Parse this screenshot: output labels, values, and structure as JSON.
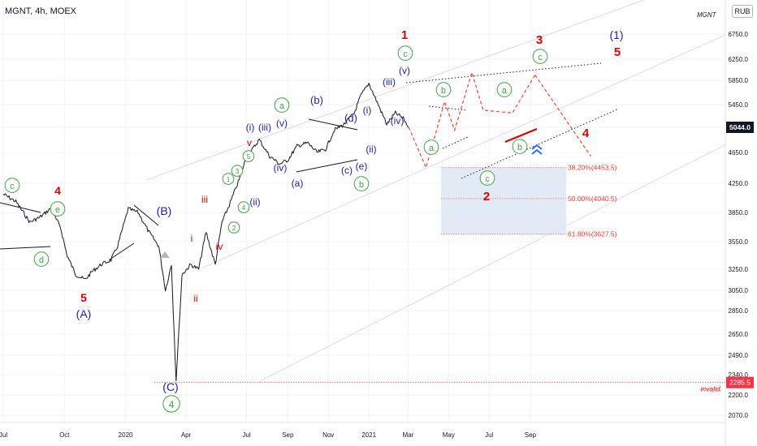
{
  "header": {
    "title": "MGNT, 4h, MOEX",
    "watermark": "MGNT",
    "currency": "RUB"
  },
  "colors": {
    "price": "#131722",
    "red": "#d50000",
    "blue": "#1e22aa",
    "green": "#43a047",
    "fib_fill": "#dbe5f4",
    "fib_line": "#e57373",
    "grid": "#f0f3fa",
    "channel": "#d1d4dc"
  },
  "chart_data": {
    "type": "line",
    "symbol": "MGNT",
    "interval": "4h",
    "exchange": "MOEX",
    "ylim": [
      1950,
      7000
    ],
    "y_ticks": [
      "6750.0",
      "6250.0",
      "5850.0",
      "5450.0",
      "5044.0",
      "4650.0",
      "4250.0",
      "3850.0",
      "3550.0",
      "3250.0",
      "3050.0",
      "2850.0",
      "2650.0",
      "2490.0",
      "2340.0",
      "2200.0",
      "2070.0"
    ],
    "x_ticks": [
      "Jul",
      "Oct",
      "2020",
      "Apr",
      "Jul",
      "Sep",
      "Nov",
      "2021",
      "Mar",
      "May",
      "Jul",
      "Sep"
    ],
    "x_tick_dates": [
      "2019-07-01",
      "2019-10-01",
      "2020-01-01",
      "2020-04-01",
      "2020-07-01",
      "2020-09-01",
      "2020-11-01",
      "2021-01-01",
      "2021-03-01",
      "2021-05-01",
      "2021-07-01",
      "2021-09-01"
    ],
    "last_price": "5044.0",
    "invalidation": {
      "value": "2285.5",
      "label": "invalid."
    },
    "fib_levels": [
      {
        "label": "38.20%(4453.5)",
        "value": 4453.5
      },
      {
        "label": "50.00%(4040.5)",
        "value": 4040.5
      },
      {
        "label": "61.80%(3627.5)",
        "value": 3627.5
      }
    ],
    "series": [
      {
        "x": [
          "2019-07-01",
          "2019-07-20",
          "2019-08-10",
          "2019-08-25",
          "2019-09-10",
          "2019-09-25",
          "2019-10-05",
          "2019-10-18",
          "2019-11-01",
          "2019-11-12",
          "2019-11-25",
          "2019-12-10",
          "2019-12-20",
          "2020-01-05",
          "2020-01-20",
          "2020-02-05",
          "2020-02-20",
          "2020-03-01",
          "2020-03-10",
          "2020-03-17",
          "2020-03-26",
          "2020-04-08",
          "2020-04-20",
          "2020-05-01",
          "2020-05-15",
          "2020-05-25",
          "2020-06-05",
          "2020-06-20",
          "2020-07-01",
          "2020-07-10",
          "2020-07-20",
          "2020-08-05",
          "2020-08-20",
          "2020-09-01",
          "2020-09-15",
          "2020-10-01",
          "2020-10-15",
          "2020-10-28",
          "2020-11-10",
          "2020-11-25",
          "2020-12-10",
          "2020-12-20",
          "2021-01-01",
          "2021-01-15",
          "2021-01-28",
          "2021-02-10",
          "2021-02-22",
          "2021-03-02"
        ],
        "values": [
          4100,
          4000,
          3750,
          3800,
          3900,
          3700,
          3400,
          3200,
          3150,
          3230,
          3300,
          3350,
          3500,
          3900,
          3850,
          3650,
          3500,
          3050,
          3300,
          2300,
          3200,
          3300,
          3250,
          3650,
          3300,
          3750,
          3950,
          4300,
          4600,
          4700,
          4850,
          4600,
          4500,
          4550,
          4750,
          4800,
          4650,
          4700,
          5000,
          5100,
          5300,
          5600,
          5800,
          5450,
          5100,
          5300,
          5200,
          5044
        ]
      }
    ],
    "projections": [
      {
        "x": [
          "2021-03-02",
          "2021-03-28",
          "2021-04-25",
          "2021-05-10",
          "2021-06-05",
          "2021-06-22",
          "2021-08-05",
          "2021-09-08"
        ],
        "values": [
          5044,
          4453,
          5500,
          5000,
          6000,
          5350,
          5300,
          5950
        ]
      },
      {
        "x": [
          "2021-09-08",
          "2021-12-01"
        ],
        "values": [
          5950,
          4600
        ]
      }
    ]
  },
  "wave_labels": [
    {
      "id": "c-green-left",
      "text": "c",
      "color": "green",
      "circle": true
    },
    {
      "id": "4-red-left",
      "text": "4",
      "color": "red",
      "circle": false
    },
    {
      "id": "e-green-left",
      "text": "e",
      "color": "green",
      "circle": true
    },
    {
      "id": "d-green-left",
      "text": "d",
      "color": "green",
      "circle": true
    },
    {
      "id": "5-red-low",
      "text": "5",
      "color": "red",
      "circle": false
    },
    {
      "id": "A-blue",
      "text": "(A)",
      "color": "blue",
      "circle": false
    },
    {
      "id": "B-blue",
      "text": "(B)",
      "color": "blue",
      "circle": false
    },
    {
      "id": "C-blue",
      "text": "(C)",
      "color": "blue",
      "circle": false
    },
    {
      "id": "4-green-bottom",
      "text": "4",
      "color": "green",
      "circle": true
    },
    {
      "id": "i-red",
      "text": "i",
      "color": "red",
      "circle": false
    },
    {
      "id": "ii-red",
      "text": "ii",
      "color": "red",
      "circle": false
    },
    {
      "id": "iii-red",
      "text": "iii",
      "color": "red",
      "circle": false
    },
    {
      "id": "iv-red",
      "text": "iv",
      "color": "red",
      "circle": false
    },
    {
      "id": "v-red",
      "text": "v",
      "color": "red",
      "circle": false
    },
    {
      "id": "1-green-s",
      "text": "1",
      "color": "green",
      "circle": true
    },
    {
      "id": "2-green-s",
      "text": "2",
      "color": "green",
      "circle": true
    },
    {
      "id": "3-green-s",
      "text": "3",
      "color": "green",
      "circle": true
    },
    {
      "id": "4-green-s",
      "text": "4",
      "color": "green",
      "circle": true
    },
    {
      "id": "5-green-s",
      "text": "5",
      "color": "green",
      "circle": true
    },
    {
      "id": "i-blue-1",
      "text": "(i)",
      "color": "blue",
      "circle": false
    },
    {
      "id": "ii-blue-1",
      "text": "(ii)",
      "color": "blue",
      "circle": false
    },
    {
      "id": "iii-blue-1",
      "text": "(iii)",
      "color": "blue",
      "circle": false
    },
    {
      "id": "iv-blue-1",
      "text": "(iv)",
      "color": "blue",
      "circle": false
    },
    {
      "id": "v-blue-1",
      "text": "(v)",
      "color": "blue",
      "circle": false
    },
    {
      "id": "a-green-mid",
      "text": "a",
      "color": "green",
      "circle": true
    },
    {
      "id": "a-blue-mid",
      "text": "(a)",
      "color": "blue",
      "circle": false
    },
    {
      "id": "b-blue-mid",
      "text": "(b)",
      "color": "blue",
      "circle": false
    },
    {
      "id": "c-blue-mid",
      "text": "(c)",
      "color": "blue",
      "circle": false
    },
    {
      "id": "d-blue-mid",
      "text": "(d)",
      "color": "blue",
      "circle": false
    },
    {
      "id": "e-blue-mid",
      "text": "(e)",
      "color": "blue",
      "circle": false
    },
    {
      "id": "b-green-mid",
      "text": "b",
      "color": "green",
      "circle": true
    },
    {
      "id": "i-blue-2",
      "text": "(i)",
      "color": "blue",
      "circle": false
    },
    {
      "id": "ii-blue-2",
      "text": "(ii)",
      "color": "blue",
      "circle": false
    },
    {
      "id": "iii-blue-2",
      "text": "(iii)",
      "color": "blue",
      "circle": false
    },
    {
      "id": "iv-blue-2",
      "text": "(iv)",
      "color": "blue",
      "circle": false
    },
    {
      "id": "v-blue-2",
      "text": "(v)",
      "color": "blue",
      "circle": false
    },
    {
      "id": "c-green-top",
      "text": "c",
      "color": "green",
      "circle": true
    },
    {
      "id": "1-red-top",
      "text": "1",
      "color": "red",
      "circle": false
    },
    {
      "id": "b-green-r",
      "text": "b",
      "color": "green",
      "circle": true
    },
    {
      "id": "a-green-r",
      "text": "a",
      "color": "green",
      "circle": true
    },
    {
      "id": "c-green-proj-low",
      "text": "c",
      "color": "green",
      "circle": true
    },
    {
      "id": "2-red-proj",
      "text": "2",
      "color": "red",
      "circle": false
    },
    {
      "id": "a-green-proj",
      "text": "a",
      "color": "green",
      "circle": true
    },
    {
      "id": "b-green-proj",
      "text": "b",
      "color": "green",
      "circle": true
    },
    {
      "id": "3-red-proj",
      "text": "3",
      "color": "red",
      "circle": false
    },
    {
      "id": "c-green-proj-top",
      "text": "c",
      "color": "green",
      "circle": true
    },
    {
      "id": "4-red-proj",
      "text": "4",
      "color": "red",
      "circle": false
    },
    {
      "id": "1-blue-proj",
      "text": "(1)",
      "color": "blue",
      "circle": false
    },
    {
      "id": "5-red-proj",
      "text": "5",
      "color": "red",
      "circle": false
    }
  ]
}
